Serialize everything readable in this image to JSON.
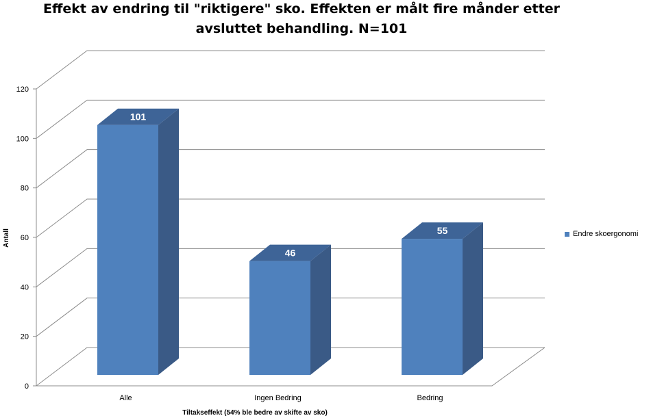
{
  "chart_data": {
    "type": "bar",
    "title_line1": "Effekt av endring til \"riktigere\" sko. Effekten er målt fire månder etter",
    "title_line2": "avsluttet behandling. N=101",
    "xlabel": "Tiltakseffekt  (54% ble bedre av skifte av sko)",
    "ylabel": "Antall",
    "categories": [
      "Alle",
      "Ingen Bedring",
      "Bedring"
    ],
    "series": [
      {
        "name": "Endre skoergonomi",
        "values": [
          101,
          46,
          55
        ],
        "color": "#4f81bd"
      }
    ],
    "data_labels": [
      "101",
      "46",
      "55"
    ],
    "ylim": [
      0,
      120
    ],
    "yticks": [
      0,
      20,
      40,
      60,
      80,
      100,
      120
    ],
    "grid": true,
    "legend_position": "right",
    "style": "3d-clustered-column"
  }
}
